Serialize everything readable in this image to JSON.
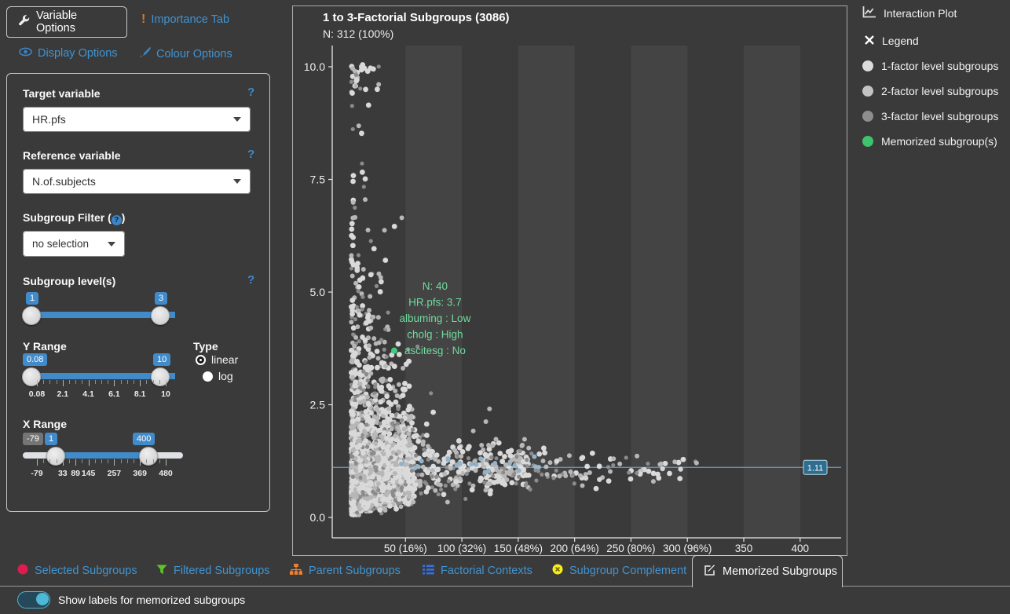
{
  "left_tabs": {
    "items": [
      {
        "label": "Variable Options",
        "icon": "wrench-icon",
        "active": true
      },
      {
        "label": "Importance Tab",
        "icon": "exclamation-icon",
        "active": false
      },
      {
        "label": "Display Options",
        "icon": "eye-icon",
        "active": false
      },
      {
        "label": "Colour Options",
        "icon": "brush-icon",
        "active": false
      }
    ]
  },
  "form": {
    "target_variable": {
      "label": "Target variable",
      "help": "?",
      "value": "HR.pfs"
    },
    "reference_variable": {
      "label": "Reference variable",
      "help": "?",
      "value": "N.of.subjects"
    },
    "subgroup_filter": {
      "label_prefix": "Subgroup Filter (",
      "label_suffix": ")",
      "badge": "?",
      "value": "no selection"
    },
    "subgroup_levels": {
      "label": "Subgroup level(s)",
      "help": "?",
      "from": "1",
      "to": "3"
    },
    "y_range": {
      "label": "Y Range",
      "from": "0.08",
      "to": "10",
      "ticks": [
        {
          "label": "0.08",
          "pos": 0
        },
        {
          "label": "2.1",
          "pos": 20
        },
        {
          "label": "4.1",
          "pos": 40
        },
        {
          "label": "6.1",
          "pos": 60
        },
        {
          "label": "8.1",
          "pos": 80
        },
        {
          "label": "10",
          "pos": 100
        }
      ]
    },
    "type": {
      "label": "Type",
      "options": [
        "linear",
        "log"
      ],
      "selected": "linear"
    },
    "x_range": {
      "label": "X Range",
      "min_badge": "-79",
      "from": "1",
      "to": "400",
      "from_pos": 14.3,
      "to_pos": 85.7,
      "ticks": [
        {
          "label": "-79",
          "pos": 0
        },
        {
          "label": "33",
          "pos": 20
        },
        {
          "label": "89",
          "pos": 30
        },
        {
          "label": "145",
          "pos": 40
        },
        {
          "label": "257",
          "pos": 60
        },
        {
          "label": "369",
          "pos": 80
        },
        {
          "label": "480",
          "pos": 100
        }
      ]
    }
  },
  "chart_data": {
    "type": "scatter",
    "title": "1 to 3-Factorial Subgroups (3086)",
    "subtitle": "N: 312 (100%)",
    "xlim": [
      -15,
      436
    ],
    "ylim": [
      0,
      10.4
    ],
    "x_ticks": [
      {
        "v": 50,
        "label": "50 (16%)"
      },
      {
        "v": 100,
        "label": "100 (32%)"
      },
      {
        "v": 150,
        "label": "150 (48%)"
      },
      {
        "v": 200,
        "label": "200 (64%)"
      },
      {
        "v": 250,
        "label": "250 (80%)"
      },
      {
        "v": 300,
        "label": "300 (96%)"
      },
      {
        "v": 350,
        "label": "350"
      },
      {
        "v": 400,
        "label": "400"
      }
    ],
    "y_ticks": [
      {
        "v": 10,
        "label": "10.0"
      },
      {
        "v": 7.5,
        "label": "7.5"
      },
      {
        "v": 5,
        "label": "5.0"
      },
      {
        "v": 2.5,
        "label": "2.5"
      },
      {
        "v": 0,
        "label": "0.0"
      }
    ],
    "stripes_data_x": [
      [
        50,
        100
      ],
      [
        150,
        200
      ],
      [
        250,
        300
      ],
      [
        350,
        400
      ]
    ],
    "stripe_color": "rgba(255,255,255,0.05)",
    "reference_line": {
      "y": 1.11,
      "label": "1.11",
      "line_color": "#6b9dc2",
      "box_fill": "#2e6d8e",
      "box_border": "#b9d8e8"
    },
    "memorized_point": {
      "x": 40,
      "y": 3.7,
      "color": "#3ecf7e",
      "label_lines": [
        "N: 40",
        "HR.pfs: 3.7",
        "albuming : Low",
        "cholg : High",
        "ascitesg : No"
      ],
      "label_color": "#6fdc9e"
    },
    "top_cluster": [
      [
        11,
        9.93
      ],
      [
        13.5,
        9.97
      ],
      [
        16.5,
        9.9
      ],
      [
        19,
        9.97
      ],
      [
        21.5,
        9.95
      ],
      [
        25,
        9.5
      ]
    ],
    "tail_points": [
      [
        210,
        0.87
      ],
      [
        222,
        0.84
      ],
      [
        262,
        1.06
      ],
      [
        278,
        1.08
      ],
      [
        294,
        1.07
      ]
    ],
    "cloud": {
      "seed": 11,
      "n": 2600,
      "classes": [
        {
          "color": "#efefef",
          "r": 3.4,
          "w": 0.45
        },
        {
          "color": "#c9c9c9",
          "r": 3.0,
          "w": 0.33
        },
        {
          "color": "#979797",
          "r": 2.6,
          "w": 0.22
        }
      ],
      "y_center": 1.05,
      "sigma0": 1.25,
      "sigma_x": 35,
      "x_mix": [
        {
          "w": 0.78,
          "base": 2,
          "span": 55,
          "pow": 1.6
        },
        {
          "w": 0.17,
          "base": 30,
          "span": 130,
          "pow": 2.0
        },
        {
          "w": 0.05,
          "base": 120,
          "span": 190,
          "pow": 1.5
        }
      ],
      "line_hue_points": {
        "n": 20,
        "color": "#9fc3dd",
        "x_min": 40,
        "x_max": 170,
        "y_min": 0.95,
        "y_max": 1.35
      }
    }
  },
  "right_panel": {
    "interaction_plot": {
      "label": "Interaction Plot",
      "icon": "chart-line-icon"
    },
    "legend_header": {
      "label": "Legend",
      "icon": "close-icon"
    },
    "legend": {
      "items": [
        {
          "label": "1-factor level subgroups",
          "color": "#dcdcdc"
        },
        {
          "label": "2-factor level subgroups",
          "color": "#c3c3c3"
        },
        {
          "label": "3-factor level subgroups",
          "color": "#8e8e8e"
        },
        {
          "label": "Memorized subgroup(s)",
          "color": "#3ec46d"
        }
      ]
    }
  },
  "bottom_tabs": {
    "items": [
      {
        "label": "Selected Subgroups",
        "icon": "red-circle-icon",
        "active": false
      },
      {
        "label": "Filtered Subgroups",
        "icon": "funnel-icon",
        "active": false
      },
      {
        "label": "Parent Subgroups",
        "icon": "sitemap-icon",
        "active": false
      },
      {
        "label": "Factorial Contexts",
        "icon": "list-icon",
        "active": false
      },
      {
        "label": "Subgroup Complement",
        "icon": "circle-x-icon",
        "active": false
      },
      {
        "label": "Memorized Subgroups",
        "icon": "edit-icon",
        "active": true
      }
    ]
  },
  "toggle_row": {
    "label": "Show labels for memorized subgroups",
    "on": true
  }
}
